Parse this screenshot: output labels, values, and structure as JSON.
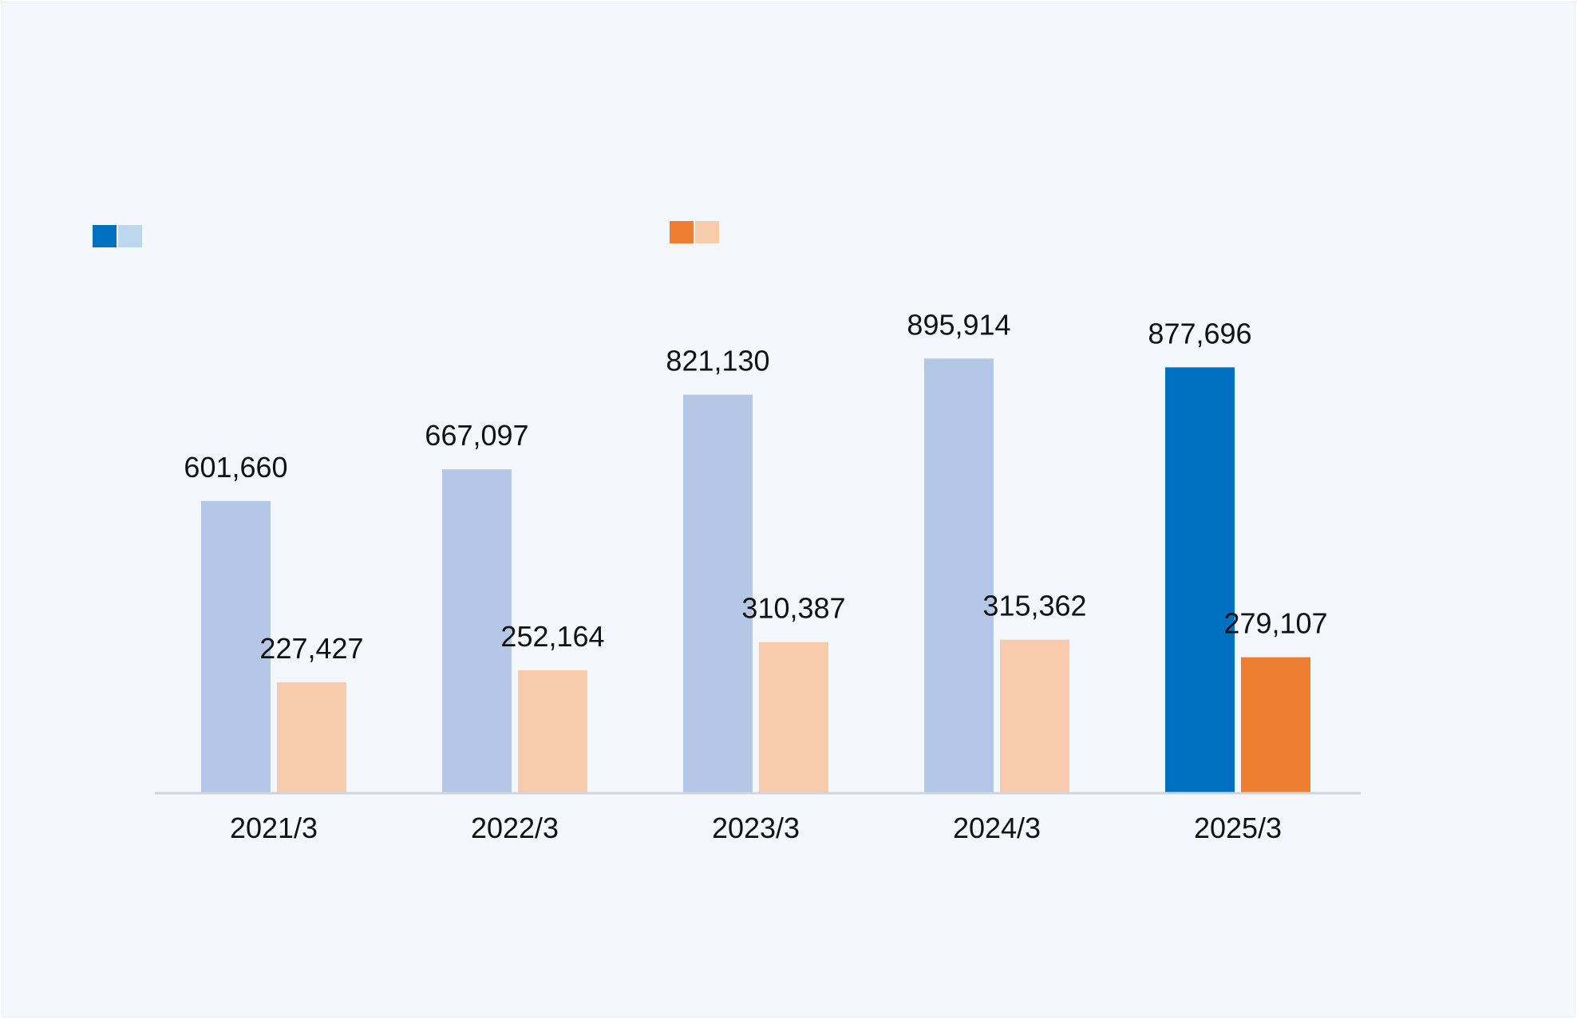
{
  "chart_data": {
    "type": "bar",
    "title": "",
    "xlabel": "",
    "ylabel": "",
    "categories": [
      "2021/3",
      "2022/3",
      "2023/3",
      "2024/3",
      "2025/3"
    ],
    "ylim": [
      0,
      1000000
    ],
    "grid": false,
    "legend_position": "top-left",
    "series": [
      {
        "values": [
          601660,
          667097,
          821130,
          895914,
          877696
        ],
        "labels": [
          "601,660",
          "667,097",
          "821,130",
          "895,914",
          "877,696"
        ],
        "color": "#b4c7e7",
        "highlight_color": "#0070c0",
        "legend_colors": [
          "#0070c0",
          "#bdd7ee"
        ]
      },
      {
        "values": [
          227427,
          252164,
          310387,
          315362,
          279107
        ],
        "labels": [
          "227,427",
          "252,164",
          "310,387",
          "315,362",
          "279,107"
        ],
        "color": "#f8cbad",
        "highlight_color": "#ed7d31",
        "legend_colors": [
          "#ed7d31",
          "#f8cbad"
        ]
      }
    ],
    "highlight_category": "2025/3",
    "axis_color": "#d0d5dc"
  }
}
